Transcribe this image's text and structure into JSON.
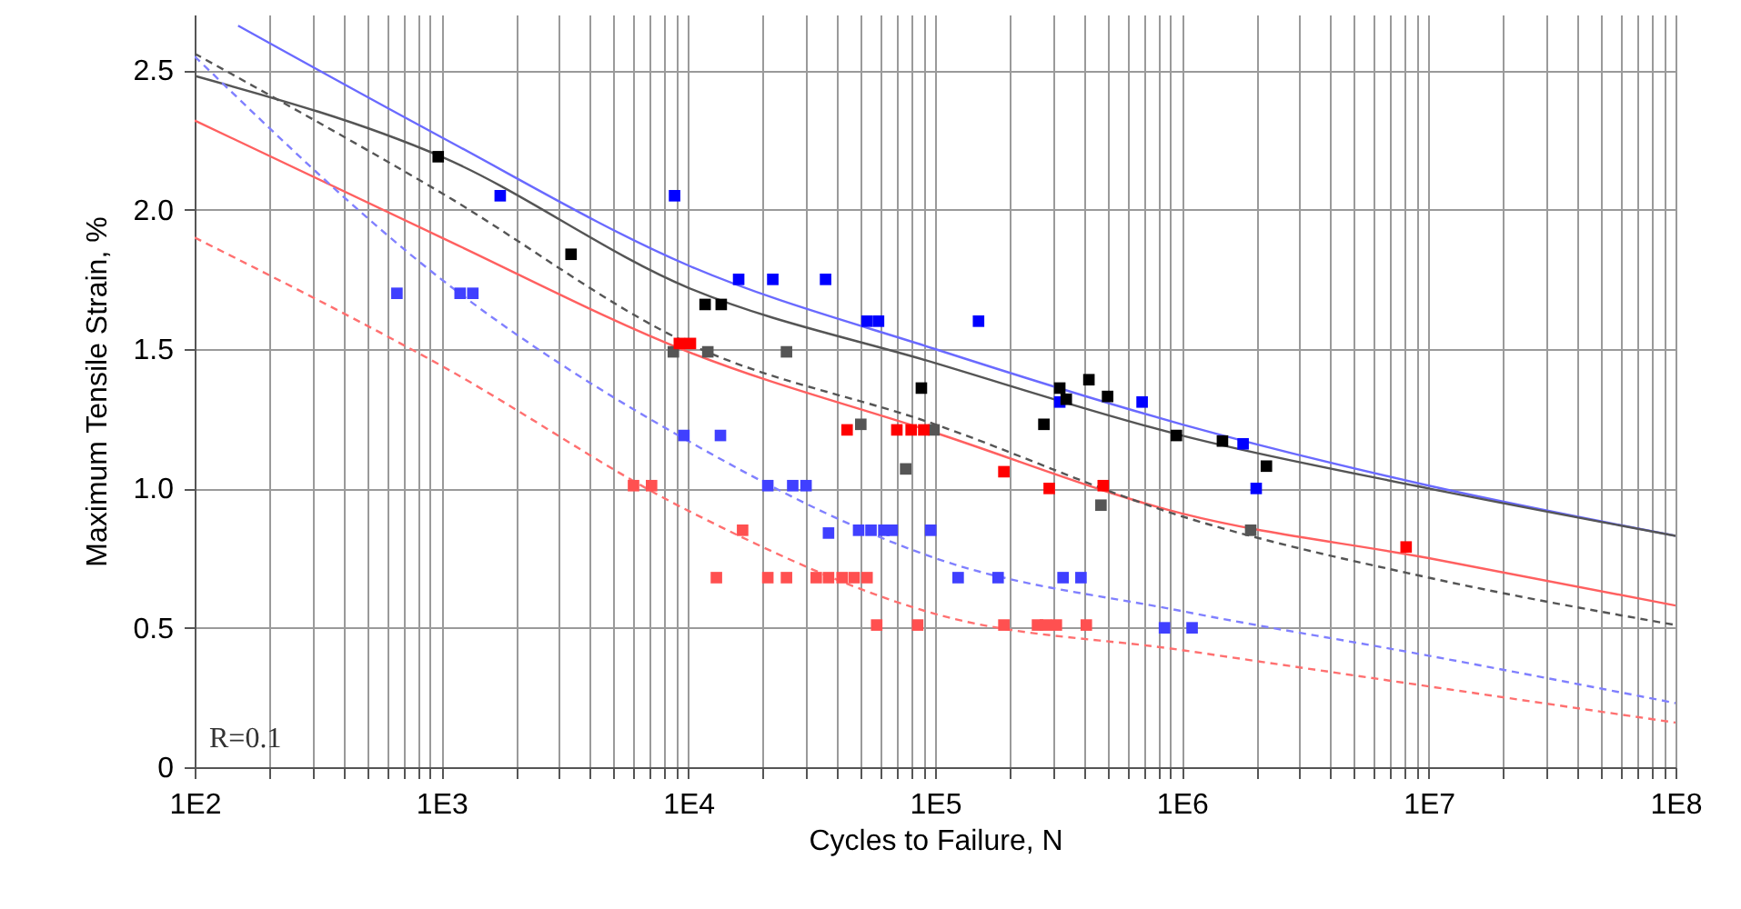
{
  "chart_data": {
    "type": "scatter",
    "xlabel": "Cycles to Failure, N",
    "ylabel": "Maximum Tensile Strain, %",
    "log": "x",
    "grid": true,
    "marker": "square",
    "xlim": [
      100,
      100000000
    ],
    "ylim": [
      0,
      2.7
    ],
    "yticks": [
      0,
      0.5,
      {
        "value": 1,
        "label": "1.0"
      },
      1.5,
      {
        "value": 2,
        "label": "2.0"
      },
      2.5
    ],
    "xticks": [
      {
        "value": 100,
        "label": "1E2"
      },
      {
        "value": 200,
        "label": null
      },
      {
        "value": 300,
        "label": null
      },
      {
        "value": 400,
        "label": null
      },
      {
        "value": 500,
        "label": null
      },
      {
        "value": 600,
        "label": null
      },
      {
        "value": 700,
        "label": null
      },
      {
        "value": 800,
        "label": null
      },
      {
        "value": 900,
        "label": null
      },
      {
        "value": 1000,
        "label": "1E3"
      },
      {
        "value": 2000,
        "label": null
      },
      {
        "value": 3000,
        "label": null
      },
      {
        "value": 4000,
        "label": null
      },
      {
        "value": 5000,
        "label": null
      },
      {
        "value": 6000,
        "label": null
      },
      {
        "value": 7000,
        "label": null
      },
      {
        "value": 8000,
        "label": null
      },
      {
        "value": 9000,
        "label": null
      },
      {
        "value": 10000,
        "label": "1E4"
      },
      {
        "value": 20000,
        "label": null
      },
      {
        "value": 30000,
        "label": null
      },
      {
        "value": 40000,
        "label": null
      },
      {
        "value": 50000,
        "label": null
      },
      {
        "value": 60000,
        "label": null
      },
      {
        "value": 70000,
        "label": null
      },
      {
        "value": 80000,
        "label": null
      },
      {
        "value": 90000,
        "label": null
      },
      {
        "value": 100000,
        "label": "1E5"
      },
      {
        "value": 200000,
        "label": null
      },
      {
        "value": 300000,
        "label": null
      },
      {
        "value": 400000,
        "label": null
      },
      {
        "value": 500000,
        "label": null
      },
      {
        "value": 600000,
        "label": null
      },
      {
        "value": 700000,
        "label": null
      },
      {
        "value": 800000,
        "label": null
      },
      {
        "value": 900000,
        "label": null
      },
      {
        "value": 1000000,
        "label": "1E6"
      },
      {
        "value": 2000000,
        "label": null
      },
      {
        "value": 3000000,
        "label": null
      },
      {
        "value": 4000000,
        "label": null
      },
      {
        "value": 5000000,
        "label": null
      },
      {
        "value": 6000000,
        "label": null
      },
      {
        "value": 7000000,
        "label": null
      },
      {
        "value": 8000000,
        "label": null
      },
      {
        "value": 9000000,
        "label": null
      },
      {
        "value": 10000000,
        "label": "1E7"
      },
      {
        "value": 20000000,
        "label": null
      },
      {
        "value": 30000000,
        "label": null
      },
      {
        "value": 40000000,
        "label": null
      },
      {
        "value": 50000000,
        "label": null
      },
      {
        "value": 60000000,
        "label": null
      },
      {
        "value": 70000000,
        "label": null
      },
      {
        "value": 80000000,
        "label": null
      },
      {
        "value": 90000000,
        "label": null
      },
      {
        "value": 100000000,
        "label": "1E8"
      }
    ],
    "annotations": [
      "R=0.1"
    ],
    "series": [
      {
        "type": "line",
        "line_style": "solid",
        "marker": "none",
        "color": "#6a6aff",
        "x": [
          150,
          1000,
          10000,
          100000,
          1000000,
          10000000,
          100000000
        ],
        "values": [
          2.66,
          2.26,
          1.8,
          1.5,
          1.23,
          1.01,
          0.83
        ]
      },
      {
        "type": "line",
        "line_style": "solid",
        "marker": "none",
        "color": "#555555",
        "x": [
          100,
          1000,
          10000,
          100000,
          1000000,
          10000000,
          100000000
        ],
        "values": [
          2.48,
          2.19,
          1.72,
          1.45,
          1.19,
          1.0,
          0.83
        ]
      },
      {
        "type": "line",
        "line_style": "solid",
        "marker": "none",
        "color": "#ff6060",
        "x": [
          100,
          1000,
          10000,
          100000,
          1000000,
          10000000,
          100000000
        ],
        "values": [
          2.32,
          1.9,
          1.49,
          1.2,
          0.91,
          0.75,
          0.58
        ]
      },
      {
        "type": "line",
        "line_style": "dashed",
        "marker": "none",
        "color": "#8080ff",
        "x": [
          100,
          1000,
          10000,
          100000,
          1000000,
          10000000,
          100000000
        ],
        "values": [
          2.55,
          1.75,
          1.17,
          0.75,
          0.56,
          0.4,
          0.23
        ]
      },
      {
        "type": "line",
        "line_style": "dashed",
        "marker": "none",
        "color": "#555555",
        "x": [
          100,
          1000,
          10000,
          100000,
          1000000,
          10000000,
          100000000
        ],
        "values": [
          2.56,
          2.06,
          1.52,
          1.23,
          0.9,
          0.68,
          0.51
        ]
      },
      {
        "type": "line",
        "line_style": "dashed",
        "marker": "none",
        "color": "#ff7070",
        "x": [
          100,
          1000,
          10000,
          100000,
          1000000,
          10000000,
          100000000
        ],
        "values": [
          1.9,
          1.44,
          0.92,
          0.55,
          0.42,
          0.29,
          0.16
        ]
      },
      {
        "color": "#4040ff",
        "x": [
          660,
          1190,
          1340,
          9600,
          13500,
          21000,
          26500,
          30000,
          37000,
          49000,
          55000,
          62000,
          67000,
          96000,
          124000,
          180000,
          330000,
          390000,
          850000,
          1100000
        ],
        "values": [
          1.7,
          1.7,
          1.7,
          1.19,
          1.19,
          1.01,
          1.01,
          1.01,
          0.84,
          0.85,
          0.85,
          0.85,
          0.85,
          0.85,
          0.68,
          0.68,
          0.68,
          0.68,
          0.5,
          0.5
        ]
      },
      {
        "color": "#555555",
        "x": [
          8700,
          12000,
          25000,
          50000,
          76000,
          99000,
          470000,
          1900000
        ],
        "values": [
          1.49,
          1.49,
          1.49,
          1.23,
          1.07,
          1.21,
          0.94,
          0.85
        ]
      },
      {
        "color": "#ff5050",
        "x": [
          6000,
          7100,
          13000,
          16600,
          21000,
          25000,
          33000,
          37000,
          42000,
          47000,
          53000,
          58000,
          85000,
          190000,
          260000,
          280000,
          310000,
          410000
        ],
        "values": [
          1.01,
          1.01,
          0.68,
          0.85,
          0.68,
          0.68,
          0.68,
          0.68,
          0.68,
          0.68,
          0.68,
          0.51,
          0.51,
          0.51,
          0.51,
          0.51,
          0.51,
          0.51
        ]
      },
      {
        "color": "#0000ff",
        "x": [
          1730,
          8800,
          16000,
          22000,
          36000,
          53000,
          59000,
          150000,
          320000,
          690000,
          1770000,
          2000000
        ],
        "values": [
          2.05,
          2.05,
          1.75,
          1.75,
          1.75,
          1.6,
          1.6,
          1.6,
          1.31,
          1.31,
          1.16,
          1.0
        ]
      },
      {
        "color": "#000000",
        "x": [
          970,
          3350,
          11700,
          13600,
          88000,
          276000,
          320000,
          340000,
          420000,
          500000,
          950000,
          1460000,
          2200000
        ],
        "values": [
          2.19,
          1.84,
          1.66,
          1.66,
          1.36,
          1.23,
          1.36,
          1.32,
          1.39,
          1.33,
          1.19,
          1.17,
          1.08
        ]
      },
      {
        "color": "#ff0000",
        "x": [
          9200,
          10200,
          44000,
          70000,
          80000,
          90000,
          190000,
          290000,
          480000,
          8100000
        ],
        "values": [
          1.52,
          1.52,
          1.21,
          1.21,
          1.21,
          1.21,
          1.06,
          1.0,
          1.01,
          0.79
        ]
      }
    ]
  }
}
